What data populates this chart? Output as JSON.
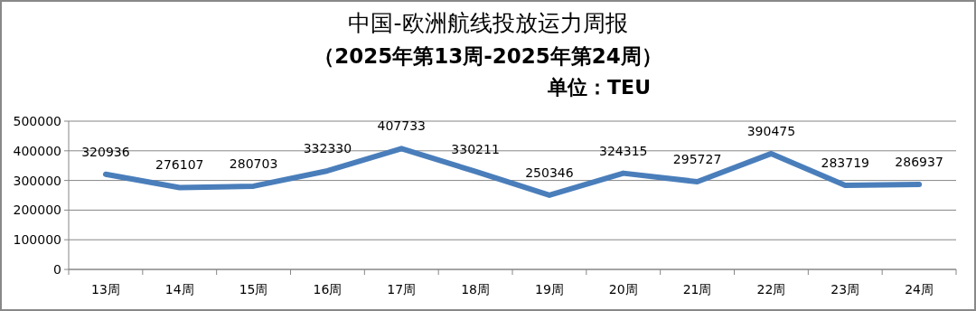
{
  "chart_data": {
    "type": "line",
    "title": "中国-欧洲航线投放运力周报",
    "subtitle": "（2025年第13周-2025年第24周）",
    "annotations": [
      "单位：TEU"
    ],
    "categories": [
      "13周",
      "14周",
      "15周",
      "16周",
      "17周",
      "18周",
      "19周",
      "20周",
      "21周",
      "22周",
      "23周",
      "24周"
    ],
    "series": [
      {
        "color": "#4a7ebb",
        "values": [
          320936,
          276107,
          280703,
          332330,
          407733,
          330211,
          250346,
          324315,
          295727,
          390475,
          283719,
          286937
        ]
      }
    ],
    "ylim": [
      0,
      500000
    ],
    "yticks": [
      0,
      100000,
      200000,
      300000,
      400000,
      500000
    ],
    "grid": "y",
    "data_labels": true,
    "marker": "none",
    "line_style": "solid"
  }
}
